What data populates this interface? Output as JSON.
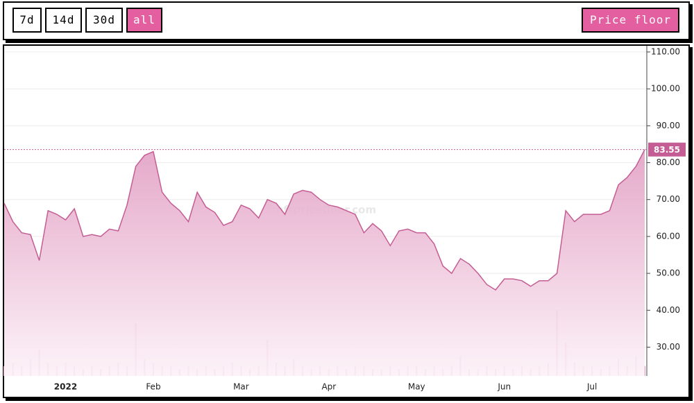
{
  "buttons": [
    "7d",
    "14d",
    "30d",
    "all"
  ],
  "active_button": 3,
  "metric_button": "Price floor",
  "chart_data": {
    "type": "area",
    "watermark": "nftpricefloor.com",
    "categories": [
      null,
      null,
      null,
      null,
      null,
      null,
      null,
      "2022",
      null,
      null,
      null,
      null,
      null,
      null,
      null,
      null,
      null,
      "Feb",
      null,
      null,
      null,
      null,
      null,
      null,
      null,
      null,
      null,
      "Mar",
      null,
      null,
      null,
      null,
      null,
      null,
      null,
      null,
      null,
      "Apr",
      null,
      null,
      null,
      null,
      null,
      null,
      null,
      null,
      null,
      "May",
      null,
      null,
      null,
      null,
      null,
      null,
      null,
      null,
      null,
      "Jun",
      null,
      null,
      null,
      null,
      null,
      null,
      null,
      null,
      null,
      "Jul",
      null,
      null,
      null,
      null,
      null,
      null
    ],
    "series": [
      {
        "name": "Price floor",
        "color": "#c45d93",
        "values": [
          69,
          64,
          61,
          60.5,
          53.5,
          67,
          66,
          64.5,
          67.5,
          60,
          60.5,
          60,
          62,
          61.5,
          68.5,
          79,
          82,
          83,
          72,
          69,
          67,
          64,
          72,
          68,
          66.5,
          63,
          64,
          68.5,
          67.5,
          65,
          70,
          69,
          66,
          71.5,
          72.5,
          72,
          70,
          68.5,
          68,
          67,
          66,
          61,
          63.5,
          61.5,
          57.5,
          61.5,
          62,
          61,
          61,
          58,
          52,
          50,
          54,
          52.5,
          50,
          47,
          45.5,
          48.5,
          48.5,
          48,
          46.5,
          48,
          48,
          50,
          67,
          64,
          66,
          66,
          66,
          67,
          74,
          76,
          79,
          83.55
        ]
      }
    ],
    "volume": {
      "color": "#d9a3c2",
      "y2lim": [
        0,
        100
      ],
      "values": [
        3,
        4,
        3,
        5,
        8,
        4,
        3,
        4,
        3,
        2,
        3,
        2,
        3,
        4,
        3,
        16,
        5,
        4,
        3,
        3,
        2,
        3,
        2,
        3,
        2,
        3,
        4,
        3,
        2,
        3,
        11,
        4,
        3,
        5,
        3,
        2,
        3,
        2,
        3,
        2,
        3,
        3,
        2,
        2,
        3,
        2,
        3,
        3,
        2,
        3,
        2,
        3,
        6,
        2,
        2,
        3,
        2,
        3,
        2,
        3,
        2,
        3,
        4,
        20,
        10,
        4,
        3,
        3,
        2,
        3,
        5,
        3,
        6,
        3
      ]
    },
    "ylim": [
      22.2,
      111.3
    ],
    "yticks": [
      {
        "value": 30,
        "label": "30.00"
      },
      {
        "value": 40,
        "label": "40.00"
      },
      {
        "value": 50,
        "label": "50.00"
      },
      {
        "value": 60,
        "label": "60.00"
      },
      {
        "value": 70,
        "label": "70.00"
      },
      {
        "value": 80,
        "label": "80.00"
      },
      {
        "value": 90,
        "label": "90.00"
      },
      {
        "value": 100,
        "label": "100.00"
      },
      {
        "value": 110,
        "label": "110.00"
      }
    ],
    "grid": true,
    "last_value_line": true
  }
}
